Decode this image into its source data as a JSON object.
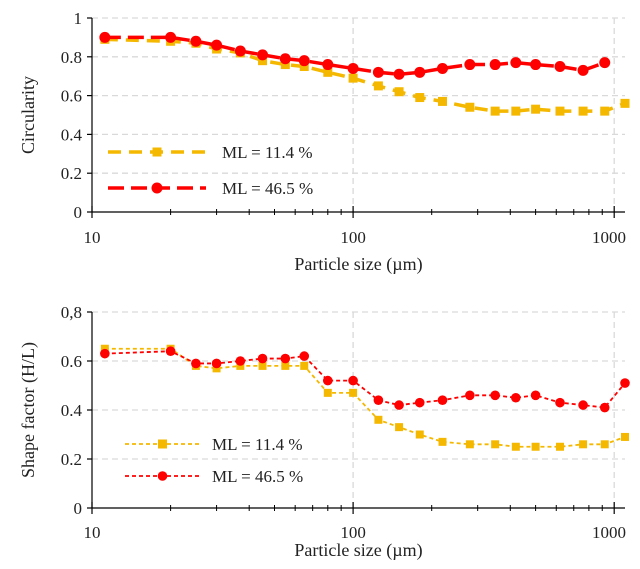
{
  "chart_data": [
    {
      "type": "line",
      "xscale": "log",
      "xlim": [
        10,
        1100
      ],
      "ylim": [
        0,
        1
      ],
      "xticks": [
        "10",
        "100",
        "1000"
      ],
      "yticks": [
        "0",
        "0.2",
        "0.4",
        "0.6",
        "0.8",
        "1"
      ],
      "xlabel": "Particle size (µm)",
      "ylabel": "Circularity",
      "grid": true,
      "legend_position": "bottom-left",
      "series": [
        {
          "name": "ML = 11.4 %",
          "color": "#f5b800",
          "marker": "square",
          "x": [
            11.2,
            20,
            25,
            30,
            37,
            45,
            55,
            65,
            80,
            100,
            125,
            150,
            180,
            220,
            280,
            350,
            420,
            500,
            620,
            760,
            920,
            1100
          ],
          "y": [
            0.89,
            0.88,
            0.87,
            0.84,
            0.82,
            0.78,
            0.76,
            0.75,
            0.72,
            0.69,
            0.65,
            0.62,
            0.59,
            0.57,
            0.54,
            0.52,
            0.52,
            0.53,
            0.52,
            0.52,
            0.52,
            0.56
          ]
        },
        {
          "name": "ML =  46.5 %",
          "color": "#ff0000",
          "marker": "circle",
          "x": [
            11.2,
            20,
            25,
            30,
            37,
            45,
            55,
            65,
            80,
            100,
            125,
            150,
            180,
            220,
            280,
            350,
            420,
            500,
            620,
            760,
            920
          ],
          "y": [
            0.9,
            0.9,
            0.88,
            0.86,
            0.83,
            0.81,
            0.79,
            0.78,
            0.76,
            0.74,
            0.72,
            0.71,
            0.72,
            0.74,
            0.76,
            0.76,
            0.77,
            0.76,
            0.75,
            0.73,
            0.77
          ]
        }
      ]
    },
    {
      "type": "line",
      "xscale": "log",
      "xlim": [
        10,
        1100
      ],
      "ylim": [
        0,
        0.8
      ],
      "xticks": [
        "10",
        "100",
        "1000"
      ],
      "yticks": [
        "0",
        "0.2",
        "0.4",
        "0.6",
        "0,8"
      ],
      "xlabel": "Particle size (µm)",
      "ylabel": "Shape factor (H/L)",
      "grid": true,
      "legend_position": "bottom-left",
      "series": [
        {
          "name": "ML = 11.4 %",
          "color": "#f5b800",
          "marker": "square",
          "x": [
            11.2,
            20,
            25,
            30,
            37,
            45,
            55,
            65,
            80,
            100,
            125,
            150,
            180,
            220,
            280,
            350,
            420,
            500,
            620,
            760,
            920,
            1100
          ],
          "y": [
            0.65,
            0.65,
            0.58,
            0.57,
            0.58,
            0.58,
            0.58,
            0.58,
            0.47,
            0.47,
            0.36,
            0.33,
            0.3,
            0.27,
            0.26,
            0.26,
            0.25,
            0.25,
            0.25,
            0.26,
            0.26,
            0.29
          ]
        },
        {
          "name": "ML =  46.5 %",
          "color": "#ff0000",
          "marker": "circle",
          "x": [
            11.2,
            20,
            25,
            30,
            37,
            45,
            55,
            65,
            80,
            100,
            125,
            150,
            180,
            220,
            280,
            350,
            420,
            500,
            620,
            760,
            920,
            1100
          ],
          "y": [
            0.63,
            0.64,
            0.59,
            0.59,
            0.6,
            0.61,
            0.61,
            0.62,
            0.52,
            0.52,
            0.44,
            0.42,
            0.43,
            0.44,
            0.46,
            0.46,
            0.45,
            0.46,
            0.43,
            0.42,
            0.41,
            0.51
          ]
        }
      ]
    }
  ]
}
